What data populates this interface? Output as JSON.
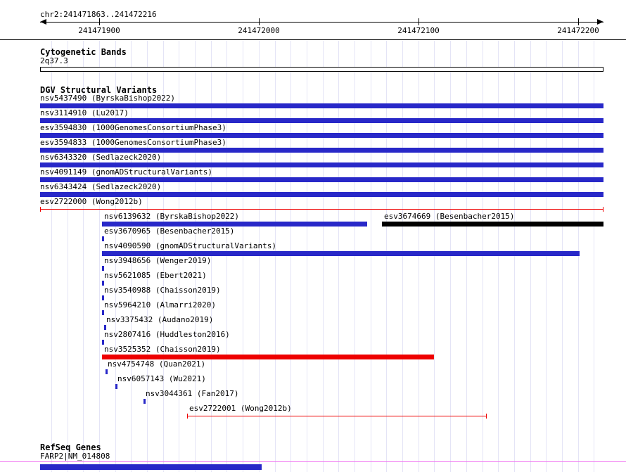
{
  "header": {
    "position_label": "chr2:241471863..241472216"
  },
  "sections": {
    "cytobands": {
      "title": "Cytogenetic Bands",
      "band_label": "2q37.3"
    },
    "dgv": {
      "title": "DGV Structural Variants"
    },
    "refseq": {
      "title": "RefSeq Genes",
      "gene_label": "FARP2|NM_014808"
    }
  },
  "colors": {
    "blue": "#2828c8",
    "red": "#ee0000",
    "black": "#000000",
    "grid": "#e4e4f6",
    "pink": "#f070f0"
  },
  "chart_data": {
    "type": "bar",
    "title": "chr2:241471863..241472216",
    "x_axis": {
      "chromosome": "chr2",
      "start": 241471863,
      "end": 241472216,
      "tick_values": [
        241471900,
        241472000,
        241472100,
        241472200
      ],
      "grid_step_bp": 10
    },
    "tracks": [
      {
        "name": "Cytogenetic Bands",
        "features": [
          {
            "label": "2q37.3",
            "start": 241471863,
            "end": 241472216,
            "glyph": "band-box"
          }
        ]
      },
      {
        "name": "DGV Structural Variants",
        "features": [
          {
            "row": 0,
            "label": "nsv5437490 (ByrskaBishop2022)",
            "start": 241471863,
            "end": 241472216,
            "glyph": "box",
            "color": "blue"
          },
          {
            "row": 1,
            "label": "nsv3114910 (Lu2017)",
            "start": 241471863,
            "end": 241472216,
            "glyph": "box",
            "color": "blue"
          },
          {
            "row": 2,
            "label": "esv3594830 (1000GenomesConsortiumPhase3)",
            "start": 241471863,
            "end": 241472216,
            "glyph": "box",
            "color": "blue"
          },
          {
            "row": 3,
            "label": "esv3594833 (1000GenomesConsortiumPhase3)",
            "start": 241471863,
            "end": 241472216,
            "glyph": "box",
            "color": "blue"
          },
          {
            "row": 4,
            "label": "nsv6343320 (Sedlazeck2020)",
            "start": 241471863,
            "end": 241472216,
            "glyph": "box",
            "color": "blue"
          },
          {
            "row": 5,
            "label": "nsv4091149 (gnomADStructuralVariants)",
            "start": 241471863,
            "end": 241472216,
            "glyph": "box",
            "color": "blue"
          },
          {
            "row": 6,
            "label": "nsv6343424 (Sedlazeck2020)",
            "start": 241471863,
            "end": 241472216,
            "glyph": "box",
            "color": "blue"
          },
          {
            "row": 7,
            "label": "esv2722000 (Wong2012b)",
            "start": 241471863,
            "end": 241472216,
            "glyph": "hairline",
            "color": "red"
          },
          {
            "row": 8,
            "label": "nsv6139632 (ByrskaBishop2022)",
            "start": 241471902,
            "end": 241472068,
            "glyph": "box",
            "color": "blue"
          },
          {
            "row": 8,
            "label": "esv3674669 (Besenbacher2015)",
            "start": 241472077,
            "end": 241472216,
            "glyph": "box",
            "color": "black"
          },
          {
            "row": 9,
            "label": "esv3670965 (Besenbacher2015)",
            "start": 241471902,
            "end": 241471902,
            "glyph": "box",
            "color": "blue"
          },
          {
            "row": 10,
            "label": "nsv4090590 (gnomADStructuralVariants)",
            "start": 241471902,
            "end": 241472201,
            "glyph": "box",
            "color": "blue"
          },
          {
            "row": 11,
            "label": "nsv3948656 (Wenger2019)",
            "start": 241471902,
            "end": 241471902,
            "glyph": "box",
            "color": "blue"
          },
          {
            "row": 12,
            "label": "nsv5621085 (Ebert2021)",
            "start": 241471902,
            "end": 241471902,
            "glyph": "box",
            "color": "blue"
          },
          {
            "row": 13,
            "label": "nsv3540988 (Chaisson2019)",
            "start": 241471902,
            "end": 241471902,
            "glyph": "box",
            "color": "blue"
          },
          {
            "row": 14,
            "label": "nsv5964210 (Almarri2020)",
            "start": 241471902,
            "end": 241471902,
            "glyph": "box",
            "color": "blue"
          },
          {
            "row": 15,
            "label": "nsv3375432 (Audano2019)",
            "start": 241471903,
            "end": 241471903,
            "glyph": "box",
            "color": "blue"
          },
          {
            "row": 16,
            "label": "nsv2807416 (Huddleston2016)",
            "start": 241471902,
            "end": 241471902,
            "glyph": "box",
            "color": "blue"
          },
          {
            "row": 17,
            "label": "nsv3525352 (Chaisson2019)",
            "start": 241471902,
            "end": 241472110,
            "glyph": "box",
            "color": "red"
          },
          {
            "row": 18,
            "label": "nsv4754748 (Quan2021)",
            "start": 241471904,
            "end": 241471904,
            "glyph": "box",
            "color": "blue"
          },
          {
            "row": 19,
            "label": "nsv6057143 (Wu2021)",
            "start": 241471910,
            "end": 241471910,
            "glyph": "box",
            "color": "blue"
          },
          {
            "row": 20,
            "label": "nsv3044361 (Fan2017)",
            "start": 241471928,
            "end": 241471928,
            "glyph": "box",
            "color": "blue"
          },
          {
            "row": 21,
            "label": "esv2722001 (Wong2012b)",
            "start": 241471955,
            "end": 241472143,
            "glyph": "hairline",
            "color": "red"
          }
        ]
      },
      {
        "name": "RefSeq Genes",
        "features": [
          {
            "label": "FARP2|NM_014808",
            "start": 241471863,
            "end": 241472002,
            "glyph": "box",
            "color": "blue"
          }
        ]
      }
    ]
  }
}
